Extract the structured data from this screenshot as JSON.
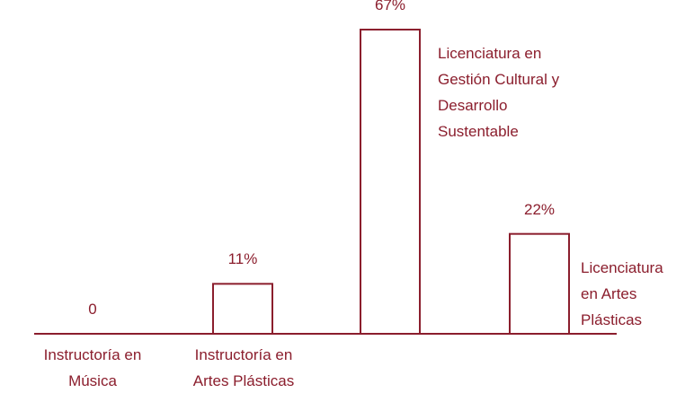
{
  "chart_data": {
    "type": "bar",
    "categories": [
      "Instructoría en Música",
      "Instructoría en Artes Plásticas",
      "Licenciatura en Gestión Cultural y Desarrollo Sustentable",
      "Licenciatura en Artes Plásticas"
    ],
    "values": [
      0,
      11,
      67,
      22
    ],
    "value_labels": [
      "0",
      "11%",
      "67%",
      "22%"
    ],
    "color": "#8b1e2d"
  }
}
